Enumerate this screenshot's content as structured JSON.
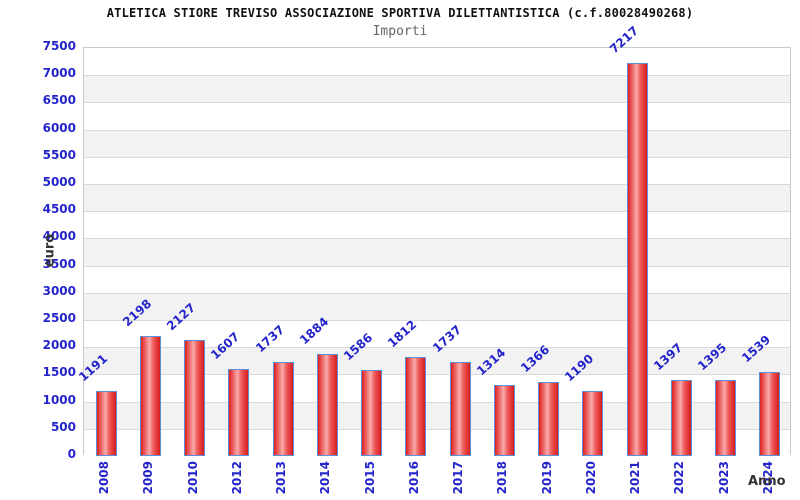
{
  "chart_data": {
    "type": "bar",
    "title": "ATLETICA STIORE TREVISO ASSOCIAZIONE SPORTIVA DILETTANTISTICA (c.f.80028490268)",
    "subtitle": "Importi",
    "xlabel": "Anno",
    "ylabel": "euro",
    "categories": [
      "2008",
      "2009",
      "2010",
      "2012",
      "2013",
      "2014",
      "2015",
      "2016",
      "2017",
      "2018",
      "2019",
      "2020",
      "2021",
      "2022",
      "2023",
      "2024"
    ],
    "values": [
      1191,
      2198,
      2127,
      1607,
      1737,
      1884,
      1586,
      1812,
      1737,
      1314,
      1366,
      1190,
      7217,
      1397,
      1395,
      1539
    ],
    "ylim": [
      0,
      7500
    ],
    "ytick_step": 500,
    "y_ticks": [
      0,
      500,
      1000,
      1500,
      2000,
      2500,
      3000,
      3500,
      4000,
      4500,
      5000,
      5500,
      6000,
      6500,
      7000,
      7500
    ],
    "grid": "horizontal-bands",
    "legend": "none",
    "colors": {
      "label_blue": "#2424cb",
      "bar_border": "#5b8fd9",
      "bar_red_edge": "#e02020",
      "bar_red_center": "#f9abab",
      "band_gray": "#f2f2f2",
      "gridline": "#d9d9d9",
      "plot_border": "#c9c9c9",
      "title_color": "#111111",
      "subtitle_color": "#666666",
      "axis_label_color": "#333333"
    }
  }
}
